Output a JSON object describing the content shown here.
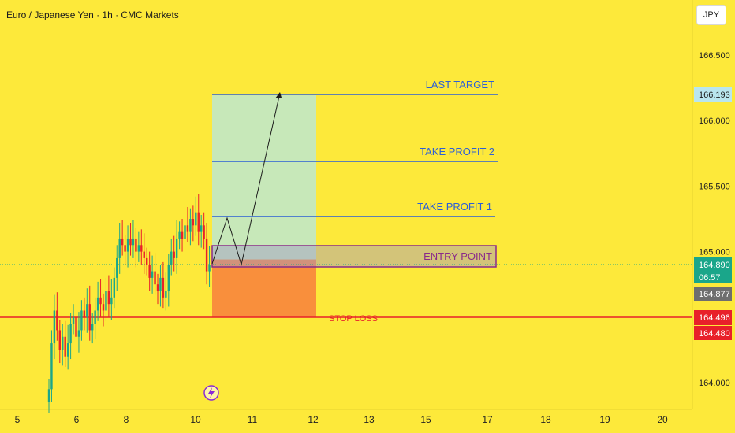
{
  "header": {
    "title": "Euro / Japanese Yen · 1h · CMC Markets",
    "currency_button": "JPY"
  },
  "chart_data": {
    "type": "candlestick",
    "title": "Euro / Japanese Yen · 1h · CMC Markets",
    "ylim": [
      163.8,
      166.65
    ],
    "y_ticks": [
      "166.500",
      "166.000",
      "165.500",
      "165.000",
      "164.000"
    ],
    "x_ticks": [
      "5",
      "6",
      "8",
      "10",
      "11",
      "12",
      "13",
      "15",
      "17",
      "18",
      "19",
      "20"
    ],
    "levels": [
      {
        "label": "LAST TARGET",
        "value": 166.193,
        "color": "#2c5fd6"
      },
      {
        "label": "TAKE PROFIT 2",
        "value": 165.68,
        "color": "#2c5fd6"
      },
      {
        "label": "TAKE PROFIT 1",
        "value": 165.26,
        "color": "#2c5fd6"
      },
      {
        "label": "ENTRY POINT",
        "value": 164.94,
        "color": "#8a2a8a"
      },
      {
        "label": "STOP LOSS",
        "value": 164.496,
        "color": "#e8202a"
      }
    ],
    "price_tags": [
      {
        "text": "166.193",
        "bg": "#b9e6ee",
        "fg": "#1c1c1c"
      },
      {
        "text": "164.890",
        "bg": "#1aa68a",
        "fg": "#ffffff"
      },
      {
        "text": "06:57",
        "bg": "#1aa68a",
        "fg": "#ffffff"
      },
      {
        "text": "164.877",
        "bg": "#6e6e6e",
        "fg": "#ffffff"
      },
      {
        "text": "164.496",
        "bg": "#e8202a",
        "fg": "#ffffff"
      },
      {
        "text": "164.480",
        "bg": "#e8202a",
        "fg": "#ffffff"
      }
    ],
    "current_price": 164.89,
    "candles_approx_close": [
      163.95,
      164.3,
      164.55,
      164.4,
      164.25,
      164.35,
      164.2,
      164.3,
      164.45,
      164.5,
      164.35,
      164.4,
      164.55,
      164.5,
      164.6,
      164.4,
      164.45,
      164.55,
      164.65,
      164.6,
      164.55,
      164.7,
      164.6,
      164.65,
      164.8,
      164.95,
      165.1,
      165.05,
      165.0,
      165.1,
      165.05,
      165.1,
      165.0,
      165.05,
      165.0,
      164.95,
      164.9,
      164.8,
      164.85,
      164.75,
      164.7,
      164.8,
      164.65,
      164.7,
      164.9,
      165.0,
      164.95,
      165.1,
      165.15,
      165.1,
      165.2,
      165.15,
      165.25,
      165.2,
      165.3,
      165.15,
      165.2,
      165.1,
      164.85,
      164.9
    ],
    "colors": {
      "up": "#1aa68a",
      "down": "#e8202a",
      "bg": "#fde93a"
    }
  }
}
